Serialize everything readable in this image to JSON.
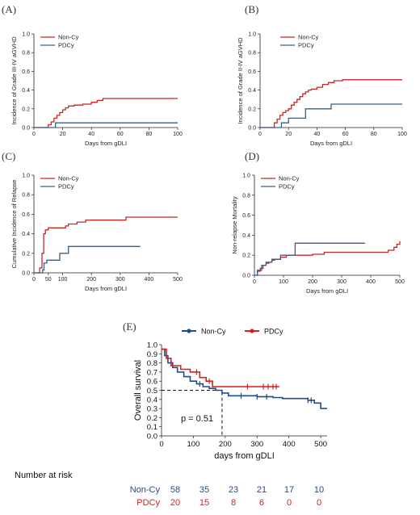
{
  "colors": {
    "noncy": "#c62828",
    "pdcy": "#3a5f80",
    "e_noncy": "#1d4e8c",
    "e_pdcy": "#d62020",
    "axis": "#222222"
  },
  "chart_data": [
    {
      "id": "A",
      "type": "line",
      "step": true,
      "panel_label": "(A)",
      "xlabel": "Days from gDLI",
      "ylabel": "Incidence of Grade III-IV aGVHD",
      "xlim": [
        0,
        100
      ],
      "ylim": [
        0,
        1.0
      ],
      "xticks": [
        "0",
        "20",
        "40",
        "60",
        "80",
        "100"
      ],
      "yticks": [
        "0.0",
        "0.2",
        "0.4",
        "0.6",
        "0.8",
        "1.0"
      ],
      "legend_position": "top-left",
      "series": [
        {
          "name": "Non-Cy",
          "color_key": "noncy",
          "x": [
            0,
            10,
            12,
            14,
            16,
            18,
            20,
            22,
            24,
            28,
            34,
            40,
            44,
            48,
            100
          ],
          "y": [
            0,
            0.03,
            0.06,
            0.1,
            0.13,
            0.16,
            0.19,
            0.21,
            0.23,
            0.24,
            0.25,
            0.27,
            0.29,
            0.31,
            0.31
          ]
        },
        {
          "name": "PDCy",
          "color_key": "pdcy",
          "x": [
            0,
            15,
            100
          ],
          "y": [
            0,
            0.05,
            0.05
          ]
        }
      ]
    },
    {
      "id": "B",
      "type": "line",
      "step": true,
      "panel_label": "(B)",
      "xlabel": "Days from gDLI",
      "ylabel": "Incidence of Grade II-IV aGVHD",
      "xlim": [
        0,
        100
      ],
      "ylim": [
        0,
        1.0
      ],
      "xticks": [
        "0",
        "20",
        "40",
        "60",
        "80",
        "100"
      ],
      "yticks": [
        "0.0",
        "0.2",
        "0.4",
        "0.6",
        "0.8",
        "1.0"
      ],
      "legend_position": "top-right",
      "series": [
        {
          "name": "Non-Cy",
          "color_key": "noncy",
          "x": [
            0,
            10,
            12,
            14,
            16,
            18,
            20,
            22,
            24,
            26,
            28,
            30,
            32,
            34,
            36,
            40,
            44,
            48,
            52,
            58,
            100
          ],
          "y": [
            0,
            0.05,
            0.09,
            0.13,
            0.16,
            0.18,
            0.2,
            0.24,
            0.27,
            0.3,
            0.33,
            0.36,
            0.38,
            0.4,
            0.41,
            0.43,
            0.46,
            0.48,
            0.5,
            0.51,
            0.51
          ]
        },
        {
          "name": "PDCy",
          "color_key": "pdcy",
          "x": [
            0,
            15,
            20,
            32,
            50,
            100
          ],
          "y": [
            0,
            0.05,
            0.1,
            0.2,
            0.25,
            0.25
          ]
        }
      ]
    },
    {
      "id": "C",
      "type": "line",
      "step": true,
      "panel_label": "(C)",
      "xlabel": "Days from gDLI",
      "ylabel": "Cumulative Incidence of Relapse",
      "xlim": [
        0,
        500
      ],
      "ylim": [
        0,
        1.0
      ],
      "xticks": [
        "0",
        "100",
        "200",
        "300",
        "400",
        "500"
      ],
      "xtick_values": [
        0,
        100,
        200,
        300,
        400,
        500
      ],
      "extra_xtick": {
        "value": 50,
        "label": "50"
      },
      "yticks": [
        "0.0",
        "0.2",
        "0.4",
        "0.6",
        "0.8",
        "1.0"
      ],
      "legend_position": "top-left",
      "series": [
        {
          "name": "Non-Cy",
          "color_key": "noncy",
          "x": [
            0,
            20,
            28,
            34,
            40,
            50,
            110,
            120,
            150,
            180,
            320,
            500
          ],
          "y": [
            0,
            0.05,
            0.2,
            0.4,
            0.44,
            0.46,
            0.48,
            0.5,
            0.52,
            0.54,
            0.57,
            0.57
          ]
        },
        {
          "name": "PDCy",
          "color_key": "pdcy",
          "x": [
            0,
            30,
            35,
            45,
            90,
            120,
            150,
            370
          ],
          "y": [
            0,
            0.03,
            0.1,
            0.13,
            0.2,
            0.27,
            0.27,
            0.27
          ]
        }
      ]
    },
    {
      "id": "D",
      "type": "line",
      "step": true,
      "panel_label": "(D)",
      "xlabel": "Days from gDLI",
      "ylabel": "Non-relapse Mortality",
      "xlim": [
        0,
        500
      ],
      "ylim": [
        0,
        1.0
      ],
      "xticks": [
        "0",
        "100",
        "200",
        "300",
        "400",
        "500"
      ],
      "yticks": [
        "0.0",
        "0.2",
        "0.4",
        "0.6",
        "0.8",
        "1.0"
      ],
      "legend_position": "top-left",
      "series": [
        {
          "name": "Non-Cy",
          "color_key": "noncy",
          "x": [
            0,
            10,
            20,
            30,
            40,
            50,
            60,
            70,
            90,
            110,
            200,
            240,
            460,
            480,
            490,
            500
          ],
          "y": [
            0,
            0.04,
            0.07,
            0.1,
            0.12,
            0.13,
            0.15,
            0.16,
            0.18,
            0.2,
            0.21,
            0.23,
            0.25,
            0.28,
            0.31,
            0.34
          ]
        },
        {
          "name": "PDCy",
          "color_key": "pdcy",
          "x": [
            0,
            10,
            25,
            40,
            60,
            90,
            140,
            380
          ],
          "y": [
            0,
            0.05,
            0.1,
            0.13,
            0.16,
            0.2,
            0.32,
            0.32
          ]
        }
      ]
    },
    {
      "id": "E",
      "type": "line",
      "step": true,
      "panel_label": "(E)",
      "xlabel": "days from gDLI",
      "ylabel": "Overall survival",
      "xlim": [
        0,
        520
      ],
      "ylim": [
        0,
        1.0
      ],
      "xticks": [
        "0",
        "100",
        "200",
        "300",
        "400",
        "500"
      ],
      "yticks": [
        "0.0",
        "0.1",
        "0.2",
        "0.3",
        "0.4",
        "0.5",
        "0.6",
        "0.7",
        "0.8",
        "0.9",
        "1.0"
      ],
      "legend_position": "top",
      "annotation": "p = 0.51",
      "median_marker": {
        "x": 190,
        "y": 0.5
      },
      "series": [
        {
          "name": "Non-Cy",
          "color_key": "e_noncy",
          "x": [
            0,
            10,
            20,
            35,
            50,
            70,
            90,
            110,
            130,
            150,
            170,
            190,
            210,
            300,
            350,
            380,
            460,
            480,
            500,
            520
          ],
          "y": [
            0.95,
            0.88,
            0.8,
            0.75,
            0.7,
            0.65,
            0.6,
            0.57,
            0.54,
            0.52,
            0.5,
            0.47,
            0.44,
            0.43,
            0.42,
            0.41,
            0.39,
            0.36,
            0.3,
            0.3
          ],
          "censor_x": [
            120,
            250,
            300,
            330,
            460,
            470
          ]
        },
        {
          "name": "PDCy",
          "color_key": "e_pdcy",
          "x": [
            0,
            15,
            30,
            60,
            90,
            120,
            140,
            160,
            370
          ],
          "y": [
            0.95,
            0.85,
            0.77,
            0.73,
            0.7,
            0.64,
            0.6,
            0.54,
            0.54
          ],
          "censor_x": [
            110,
            150,
            270,
            320,
            335,
            350,
            360
          ]
        }
      ]
    }
  ],
  "risk_table": {
    "title": "Number at risk",
    "rows": [
      {
        "name": "Non-Cy",
        "color_key": "e_noncy",
        "values": [
          "58",
          "35",
          "23",
          "21",
          "17",
          "10"
        ]
      },
      {
        "name": "PDCy",
        "color_key": "e_pdcy",
        "values": [
          "20",
          "15",
          "8",
          "6",
          "0",
          "0"
        ]
      }
    ]
  }
}
